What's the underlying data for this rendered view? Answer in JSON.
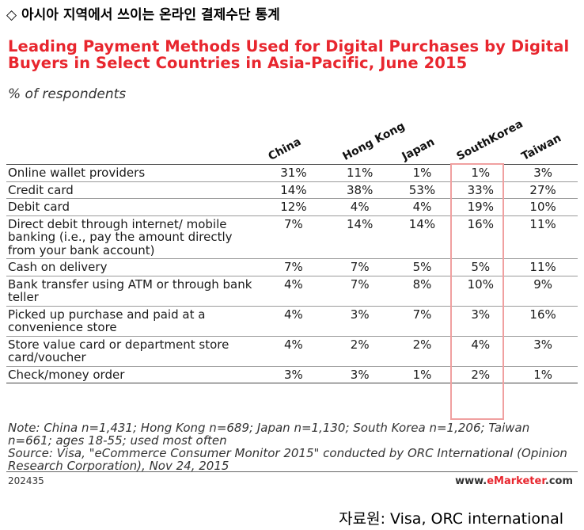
{
  "heading": "◇ 아시아 지역에서 쓰이는 온라인 결제수단 통계",
  "chart_data": {
    "type": "table",
    "title": "Leading Payment Methods Used for Digital Purchases by Digital Buyers in Select Countries in Asia-Pacific, June 2015",
    "subtitle": "% of respondents",
    "columns": [
      "China",
      "Hong Kong",
      "Japan",
      "SouthKorea",
      "Taiwan"
    ],
    "highlighted_column": "SouthKorea",
    "highlight_color": "#f0a0a0",
    "rows": [
      {
        "label": "Online wallet providers",
        "values": [
          "31%",
          "11%",
          "1%",
          "1%",
          "3%"
        ]
      },
      {
        "label": "Credit card",
        "values": [
          "14%",
          "38%",
          "53%",
          "33%",
          "27%"
        ]
      },
      {
        "label": "Debit card",
        "values": [
          "12%",
          "4%",
          "4%",
          "19%",
          "10%"
        ]
      },
      {
        "label": "Direct debit through internet/ mobile banking (i.e., pay the amount directly from your bank account)",
        "values": [
          "7%",
          "14%",
          "14%",
          "16%",
          "11%"
        ]
      },
      {
        "label": "Cash on delivery",
        "values": [
          "7%",
          "7%",
          "5%",
          "5%",
          "11%"
        ]
      },
      {
        "label": "Bank transfer using ATM or through bank teller",
        "values": [
          "4%",
          "7%",
          "8%",
          "10%",
          "9%"
        ]
      },
      {
        "label": "Picked up purchase and paid at a convenience store",
        "values": [
          "4%",
          "3%",
          "7%",
          "3%",
          "16%"
        ]
      },
      {
        "label": "Store value card or department store card/voucher",
        "values": [
          "4%",
          "2%",
          "2%",
          "4%",
          "3%"
        ]
      },
      {
        "label": "Check/money order",
        "values": [
          "3%",
          "3%",
          "1%",
          "2%",
          "1%"
        ]
      }
    ],
    "note": "Note: China n=1,431; Hong Kong n=689; Japan n=1,130; South Korea n=1,206; Taiwan n=661; ages 18-55; used most often",
    "source": "Source: Visa, \"eCommerce Consumer Monitor 2015\" conducted by ORC International (Opinion Research Corporation), Nov 24, 2015"
  },
  "footer": {
    "chart_id": "202435",
    "brand_prefix": "www.",
    "brand_em": "eMarketer",
    "brand_suffix": ".com"
  },
  "caption_source": "자료원: Visa, ORC international",
  "colors": {
    "title_red": "#e8262e"
  }
}
